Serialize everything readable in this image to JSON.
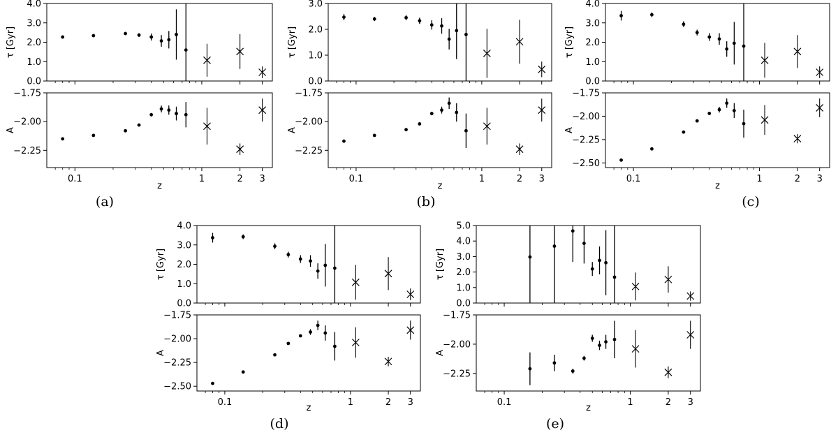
{
  "figure": {
    "x_axis": {
      "label": "z",
      "scale": "log",
      "range": [
        0.06,
        3.6
      ],
      "ticks": [
        0.1,
        1,
        2,
        3
      ],
      "tick_labels": [
        "0.1",
        "1",
        "2",
        "3"
      ]
    },
    "y_label_top": "τ [Gyr]",
    "y_label_bottom": "A"
  },
  "chart_data": [
    {
      "panel": "(a)",
      "type": "scatter",
      "top": {
        "ylabel": "τ [Gyr]",
        "ylim": [
          0.0,
          4.0
        ],
        "yticks": [
          0.0,
          1.0,
          2.0,
          3.0,
          4.0
        ],
        "tick_labels": [
          "0.0",
          "1.0",
          "2.0",
          "3.0",
          "4.0"
        ],
        "points": [
          {
            "z": 0.08,
            "y": 2.27,
            "err": 0.08
          },
          {
            "z": 0.14,
            "y": 2.34,
            "err": 0.06
          },
          {
            "z": 0.25,
            "y": 2.45,
            "err": 0.08
          },
          {
            "z": 0.32,
            "y": 2.37,
            "err": 0.1
          },
          {
            "z": 0.4,
            "y": 2.27,
            "err": 0.18
          },
          {
            "z": 0.48,
            "y": 2.07,
            "err": 0.3
          },
          {
            "z": 0.55,
            "y": 2.13,
            "err": 0.45
          },
          {
            "z": 0.63,
            "y": 2.4,
            "err": 1.3
          },
          {
            "z": 0.75,
            "y": 1.6,
            "err": 3.5
          }
        ],
        "crosses": [
          {
            "z": 1.1,
            "y": 1.07,
            "err": 0.85
          },
          {
            "z": 2.0,
            "y": 1.52,
            "err": 0.9
          },
          {
            "z": 3.0,
            "y": 0.45,
            "err": 0.3
          }
        ]
      },
      "bottom": {
        "ylabel": "A",
        "ylim": [
          -2.4,
          -1.75
        ],
        "yticks": [
          -1.75,
          -2.0,
          -2.25
        ],
        "tick_labels": [
          "−1.75",
          "−2.00",
          "−2.25"
        ],
        "points": [
          {
            "z": 0.08,
            "y": -2.15,
            "err": 0.0
          },
          {
            "z": 0.14,
            "y": -2.12,
            "err": 0.0
          },
          {
            "z": 0.25,
            "y": -2.08,
            "err": 0.0
          },
          {
            "z": 0.32,
            "y": -2.03,
            "err": 0.0
          },
          {
            "z": 0.4,
            "y": -1.94,
            "err": 0.015
          },
          {
            "z": 0.48,
            "y": -1.89,
            "err": 0.03
          },
          {
            "z": 0.55,
            "y": -1.9,
            "err": 0.04
          },
          {
            "z": 0.63,
            "y": -1.93,
            "err": 0.06
          },
          {
            "z": 0.75,
            "y": -1.94,
            "err": 0.11
          }
        ],
        "crosses": [
          {
            "z": 1.1,
            "y": -2.04,
            "err": 0.16
          },
          {
            "z": 2.0,
            "y": -2.24,
            "err": 0.05
          },
          {
            "z": 3.0,
            "y": -1.9,
            "err": 0.1
          }
        ]
      }
    },
    {
      "panel": "(b)",
      "type": "scatter",
      "top": {
        "ylabel": "τ [Gyr]",
        "ylim": [
          0.0,
          3.0
        ],
        "yticks": [
          0.0,
          1.0,
          2.0,
          3.0
        ],
        "tick_labels": [
          "0.0",
          "1.0",
          "2.0",
          "3.0"
        ],
        "points": [
          {
            "z": 0.08,
            "y": 2.47,
            "err": 0.12
          },
          {
            "z": 0.14,
            "y": 2.4,
            "err": 0.08
          },
          {
            "z": 0.25,
            "y": 2.45,
            "err": 0.1
          },
          {
            "z": 0.32,
            "y": 2.33,
            "err": 0.12
          },
          {
            "z": 0.4,
            "y": 2.17,
            "err": 0.18
          },
          {
            "z": 0.48,
            "y": 2.13,
            "err": 0.3
          },
          {
            "z": 0.55,
            "y": 1.62,
            "err": 0.4
          },
          {
            "z": 0.63,
            "y": 1.95,
            "err": 1.1
          },
          {
            "z": 0.75,
            "y": 1.8,
            "err": 3.0
          }
        ],
        "crosses": [
          {
            "z": 1.1,
            "y": 1.07,
            "err": 0.95
          },
          {
            "z": 2.0,
            "y": 1.52,
            "err": 0.85
          },
          {
            "z": 3.0,
            "y": 0.45,
            "err": 0.3
          }
        ]
      },
      "bottom": {
        "ylabel": "A",
        "ylim": [
          -2.4,
          -1.75
        ],
        "yticks": [
          -1.75,
          -2.0,
          -2.25
        ],
        "tick_labels": [
          "−1.75",
          "−2.00",
          "−2.25"
        ],
        "points": [
          {
            "z": 0.08,
            "y": -2.17,
            "err": 0.0
          },
          {
            "z": 0.14,
            "y": -2.12,
            "err": 0.0
          },
          {
            "z": 0.25,
            "y": -2.07,
            "err": 0.0
          },
          {
            "z": 0.32,
            "y": -2.02,
            "err": 0.0
          },
          {
            "z": 0.4,
            "y": -1.93,
            "err": 0.015
          },
          {
            "z": 0.48,
            "y": -1.9,
            "err": 0.03
          },
          {
            "z": 0.55,
            "y": -1.84,
            "err": 0.05
          },
          {
            "z": 0.63,
            "y": -1.92,
            "err": 0.08
          },
          {
            "z": 0.75,
            "y": -2.08,
            "err": 0.15
          }
        ],
        "crosses": [
          {
            "z": 1.1,
            "y": -2.04,
            "err": 0.16
          },
          {
            "z": 2.0,
            "y": -2.24,
            "err": 0.05
          },
          {
            "z": 3.0,
            "y": -1.9,
            "err": 0.1
          }
        ]
      }
    },
    {
      "panel": "(c)",
      "type": "scatter",
      "top": {
        "ylabel": "τ [Gyr]",
        "ylim": [
          0.0,
          4.0
        ],
        "yticks": [
          0.0,
          1.0,
          2.0,
          3.0,
          4.0
        ],
        "tick_labels": [
          "0.0",
          "1.0",
          "2.0",
          "3.0",
          "4.0"
        ],
        "points": [
          {
            "z": 0.08,
            "y": 3.37,
            "err": 0.25
          },
          {
            "z": 0.14,
            "y": 3.42,
            "err": 0.12
          },
          {
            "z": 0.25,
            "y": 2.93,
            "err": 0.15
          },
          {
            "z": 0.32,
            "y": 2.5,
            "err": 0.15
          },
          {
            "z": 0.4,
            "y": 2.27,
            "err": 0.2
          },
          {
            "z": 0.48,
            "y": 2.17,
            "err": 0.3
          },
          {
            "z": 0.55,
            "y": 1.65,
            "err": 0.4
          },
          {
            "z": 0.63,
            "y": 1.95,
            "err": 1.1
          },
          {
            "z": 0.75,
            "y": 1.8,
            "err": 3.0
          }
        ],
        "crosses": [
          {
            "z": 1.1,
            "y": 1.07,
            "err": 0.9
          },
          {
            "z": 2.0,
            "y": 1.52,
            "err": 0.85
          },
          {
            "z": 3.0,
            "y": 0.45,
            "err": 0.3
          }
        ]
      },
      "bottom": {
        "ylabel": "A",
        "ylim": [
          -2.55,
          -1.75
        ],
        "yticks": [
          -1.75,
          -2.0,
          -2.25,
          -2.5
        ],
        "tick_labels": [
          "−1.75",
          "−2.00",
          "−2.25",
          "−2.50"
        ],
        "points": [
          {
            "z": 0.08,
            "y": -2.47,
            "err": 0.0
          },
          {
            "z": 0.14,
            "y": -2.35,
            "err": 0.0
          },
          {
            "z": 0.25,
            "y": -2.17,
            "err": 0.0
          },
          {
            "z": 0.32,
            "y": -2.05,
            "err": 0.0
          },
          {
            "z": 0.4,
            "y": -1.97,
            "err": 0.015
          },
          {
            "z": 0.48,
            "y": -1.93,
            "err": 0.03
          },
          {
            "z": 0.55,
            "y": -1.86,
            "err": 0.05
          },
          {
            "z": 0.63,
            "y": -1.94,
            "err": 0.08
          },
          {
            "z": 0.75,
            "y": -2.08,
            "err": 0.15
          }
        ],
        "crosses": [
          {
            "z": 1.1,
            "y": -2.04,
            "err": 0.16
          },
          {
            "z": 2.0,
            "y": -2.24,
            "err": 0.05
          },
          {
            "z": 3.0,
            "y": -1.91,
            "err": 0.1
          }
        ]
      }
    },
    {
      "panel": "(d)",
      "type": "scatter",
      "top": {
        "ylabel": "τ [Gyr]",
        "ylim": [
          0.0,
          4.0
        ],
        "yticks": [
          0.0,
          1.0,
          2.0,
          3.0,
          4.0
        ],
        "tick_labels": [
          "0.0",
          "1.0",
          "2.0",
          "3.0",
          "4.0"
        ],
        "points": [
          {
            "z": 0.08,
            "y": 3.37,
            "err": 0.25
          },
          {
            "z": 0.14,
            "y": 3.42,
            "err": 0.12
          },
          {
            "z": 0.25,
            "y": 2.93,
            "err": 0.15
          },
          {
            "z": 0.32,
            "y": 2.5,
            "err": 0.15
          },
          {
            "z": 0.4,
            "y": 2.27,
            "err": 0.2
          },
          {
            "z": 0.48,
            "y": 2.17,
            "err": 0.3
          },
          {
            "z": 0.55,
            "y": 1.65,
            "err": 0.4
          },
          {
            "z": 0.63,
            "y": 1.95,
            "err": 1.1
          },
          {
            "z": 0.75,
            "y": 1.8,
            "err": 3.0
          }
        ],
        "crosses": [
          {
            "z": 1.1,
            "y": 1.07,
            "err": 0.9
          },
          {
            "z": 2.0,
            "y": 1.52,
            "err": 0.85
          },
          {
            "z": 3.0,
            "y": 0.45,
            "err": 0.3
          }
        ]
      },
      "bottom": {
        "ylabel": "A",
        "ylim": [
          -2.55,
          -1.75
        ],
        "yticks": [
          -1.75,
          -2.0,
          -2.25,
          -2.5
        ],
        "tick_labels": [
          "−1.75",
          "−2.00",
          "−2.25",
          "−2.50"
        ],
        "points": [
          {
            "z": 0.08,
            "y": -2.47,
            "err": 0.0
          },
          {
            "z": 0.14,
            "y": -2.35,
            "err": 0.0
          },
          {
            "z": 0.25,
            "y": -2.17,
            "err": 0.0
          },
          {
            "z": 0.32,
            "y": -2.05,
            "err": 0.0
          },
          {
            "z": 0.4,
            "y": -1.97,
            "err": 0.015
          },
          {
            "z": 0.48,
            "y": -1.93,
            "err": 0.03
          },
          {
            "z": 0.55,
            "y": -1.86,
            "err": 0.05
          },
          {
            "z": 0.63,
            "y": -1.94,
            "err": 0.08
          },
          {
            "z": 0.75,
            "y": -2.08,
            "err": 0.15
          }
        ],
        "crosses": [
          {
            "z": 1.1,
            "y": -2.04,
            "err": 0.16
          },
          {
            "z": 2.0,
            "y": -2.24,
            "err": 0.05
          },
          {
            "z": 3.0,
            "y": -1.91,
            "err": 0.1
          }
        ]
      }
    },
    {
      "panel": "(e)",
      "type": "scatter",
      "top": {
        "ylabel": "τ [Gyr]",
        "ylim": [
          0.0,
          5.0
        ],
        "yticks": [
          0.0,
          1.0,
          2.0,
          3.0,
          4.0,
          5.0
        ],
        "tick_labels": [
          "0.0",
          "1.0",
          "2.0",
          "3.0",
          "4.0",
          "5.0"
        ],
        "points": [
          {
            "z": 0.16,
            "y": 2.97,
            "err": 4.0
          },
          {
            "z": 0.25,
            "y": 3.67,
            "err": 4.0
          },
          {
            "z": 0.35,
            "y": 4.65,
            "err": 2.0
          },
          {
            "z": 0.43,
            "y": 3.85,
            "err": 1.3
          },
          {
            "z": 0.5,
            "y": 2.2,
            "err": 0.45
          },
          {
            "z": 0.57,
            "y": 2.75,
            "err": 0.9
          },
          {
            "z": 0.64,
            "y": 2.6,
            "err": 2.1
          },
          {
            "z": 0.75,
            "y": 1.67,
            "err": 3.5
          }
        ],
        "crosses": [
          {
            "z": 1.1,
            "y": 1.07,
            "err": 0.9
          },
          {
            "z": 2.0,
            "y": 1.52,
            "err": 0.85
          },
          {
            "z": 3.0,
            "y": 0.45,
            "err": 0.3
          }
        ]
      },
      "bottom": {
        "ylabel": "A",
        "ylim": [
          -2.4,
          -1.75
        ],
        "yticks": [
          -1.75,
          -2.0,
          -2.25
        ],
        "tick_labels": [
          "−1.75",
          "−2.00",
          "−2.25"
        ],
        "points": [
          {
            "z": 0.16,
            "y": -2.21,
            "err": 0.14
          },
          {
            "z": 0.25,
            "y": -2.16,
            "err": 0.07
          },
          {
            "z": 0.35,
            "y": -2.23,
            "err": 0.02
          },
          {
            "z": 0.43,
            "y": -2.12,
            "err": 0.02
          },
          {
            "z": 0.5,
            "y": -1.95,
            "err": 0.03
          },
          {
            "z": 0.57,
            "y": -2.01,
            "err": 0.04
          },
          {
            "z": 0.64,
            "y": -1.98,
            "err": 0.06
          },
          {
            "z": 0.75,
            "y": -1.96,
            "err": 0.16
          }
        ],
        "crosses": [
          {
            "z": 1.1,
            "y": -2.04,
            "err": 0.16
          },
          {
            "z": 2.0,
            "y": -2.24,
            "err": 0.05
          },
          {
            "z": 3.0,
            "y": -1.92,
            "err": 0.12
          }
        ]
      }
    }
  ]
}
